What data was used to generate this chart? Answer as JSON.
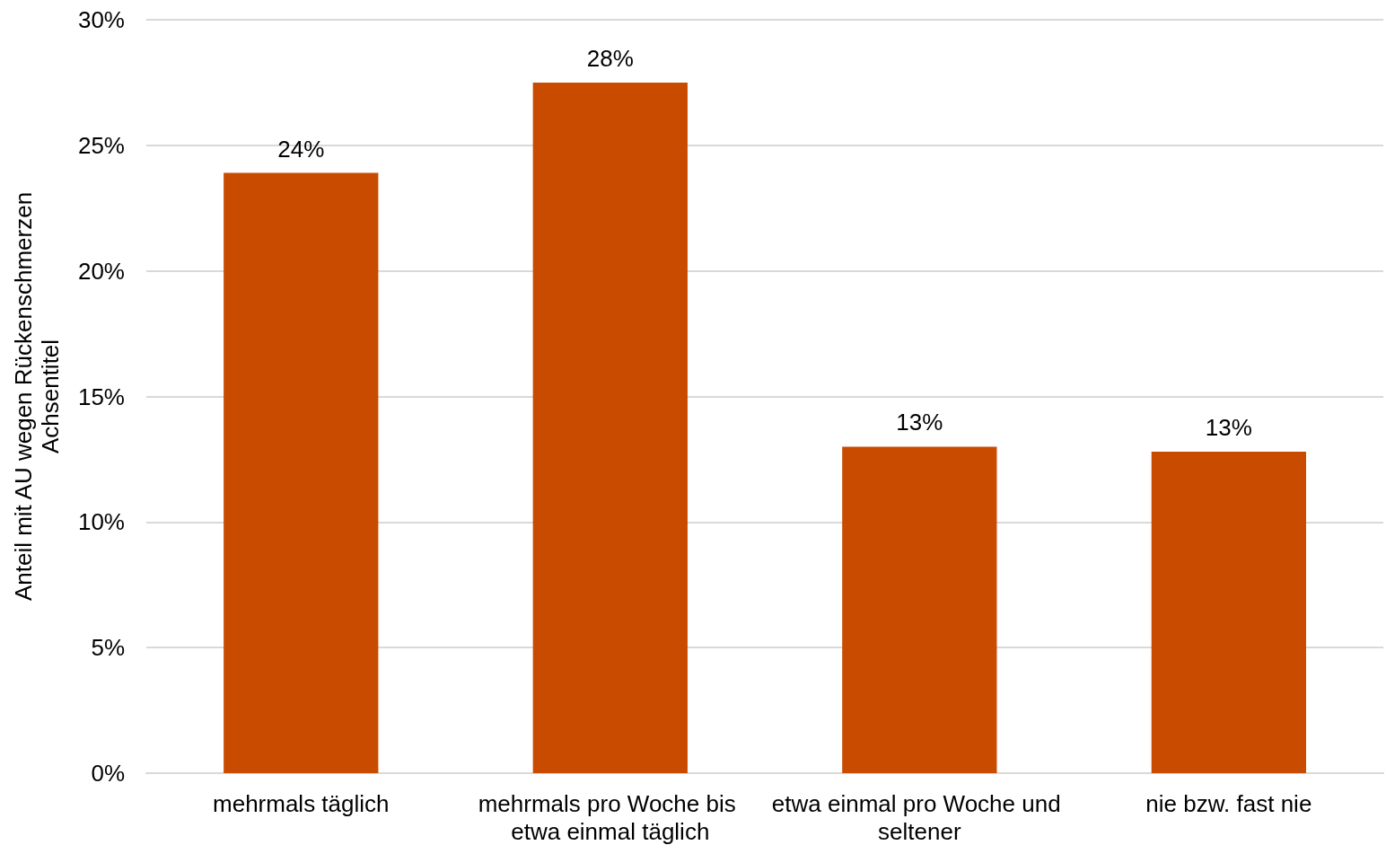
{
  "chart_data": {
    "type": "bar",
    "ylabel": "Anteil mit AU wegen Rückenschmerzen\nAchsentitel",
    "categories": [
      "mehrmals täglich",
      "mehrmals pro Woche bis etwa einmal täglich",
      "etwa einmal pro Woche und seltener",
      "nie bzw. fast nie"
    ],
    "values": [
      23.9,
      27.5,
      13.0,
      12.8
    ],
    "value_labels": [
      "24%",
      "28%",
      "13%",
      "13%"
    ],
    "color": "#c84b00",
    "ylim": [
      0,
      30
    ],
    "yticks": [
      {
        "value": 0,
        "label": "0%"
      },
      {
        "value": 5,
        "label": "5%"
      },
      {
        "value": 10,
        "label": "10%"
      },
      {
        "value": 15,
        "label": "15%"
      },
      {
        "value": 20,
        "label": "20%"
      },
      {
        "value": 25,
        "label": "25%"
      },
      {
        "value": 30,
        "label": "30%"
      }
    ],
    "grid": "y"
  }
}
